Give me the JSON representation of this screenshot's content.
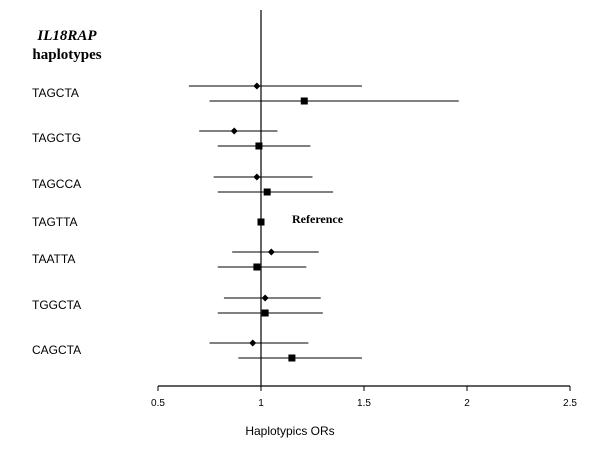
{
  "chart_data": {
    "type": "forest",
    "title_gene": "IL18RAP",
    "title_rest": "haplotypes",
    "xlabel": "Haplotypics ORs",
    "xlim": [
      0.5,
      2.5
    ],
    "x_ticks": [
      "0.5",
      "1",
      "1.5",
      "2",
      "2.5"
    ],
    "reference_line": 1,
    "reference_label": "Reference",
    "reference_row": "TAGTTA",
    "groups": [
      {
        "label": "TAGCTA",
        "estimates": [
          {
            "marker": "diamond",
            "or": 0.98,
            "ci": [
              0.65,
              1.49
            ]
          },
          {
            "marker": "square",
            "or": 1.21,
            "ci": [
              0.75,
              1.96
            ]
          }
        ]
      },
      {
        "label": "TAGCTG",
        "estimates": [
          {
            "marker": "diamond",
            "or": 0.87,
            "ci": [
              0.7,
              1.08
            ]
          },
          {
            "marker": "square",
            "or": 0.99,
            "ci": [
              0.79,
              1.24
            ]
          }
        ]
      },
      {
        "label": "TAGCCA",
        "estimates": [
          {
            "marker": "diamond",
            "or": 0.98,
            "ci": [
              0.77,
              1.25
            ]
          },
          {
            "marker": "square",
            "or": 1.03,
            "ci": [
              0.79,
              1.35
            ]
          }
        ]
      },
      {
        "label": "TAGTTA",
        "estimates": [
          {
            "marker": "square",
            "or": 1.0,
            "ci": null
          }
        ]
      },
      {
        "label": "TAATTA",
        "estimates": [
          {
            "marker": "diamond",
            "or": 1.05,
            "ci": [
              0.86,
              1.28
            ]
          },
          {
            "marker": "square",
            "or": 0.98,
            "ci": [
              0.79,
              1.22
            ]
          }
        ]
      },
      {
        "label": "TGGCTA",
        "estimates": [
          {
            "marker": "diamond",
            "or": 1.02,
            "ci": [
              0.82,
              1.29
            ]
          },
          {
            "marker": "square",
            "or": 1.02,
            "ci": [
              0.79,
              1.3
            ]
          }
        ]
      },
      {
        "label": "CAGCTA",
        "estimates": [
          {
            "marker": "diamond",
            "or": 0.96,
            "ci": [
              0.75,
              1.23
            ]
          },
          {
            "marker": "square",
            "or": 1.15,
            "ci": [
              0.89,
              1.49
            ]
          }
        ]
      }
    ]
  }
}
